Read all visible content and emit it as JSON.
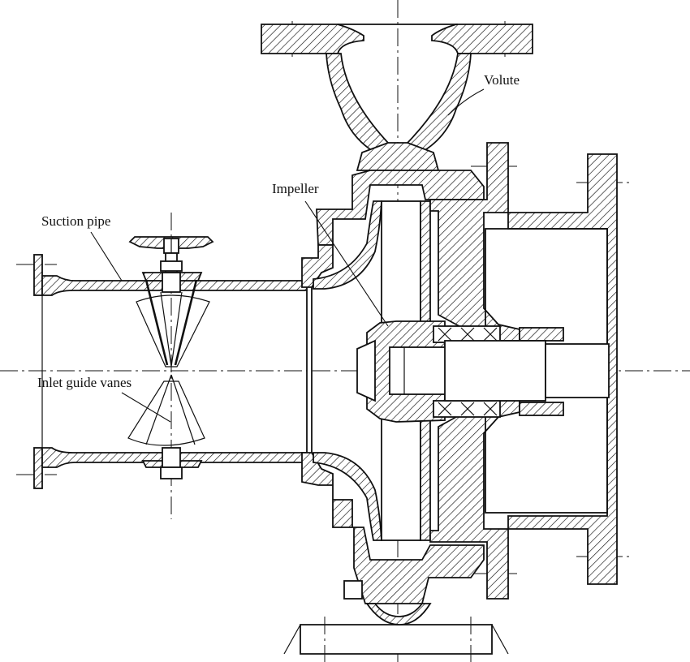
{
  "labels": {
    "volute": "Volute",
    "impeller": "Impeller",
    "suction_pipe": "Suction pipe",
    "inlet_guide_vanes": "Inlet guide vanes"
  }
}
